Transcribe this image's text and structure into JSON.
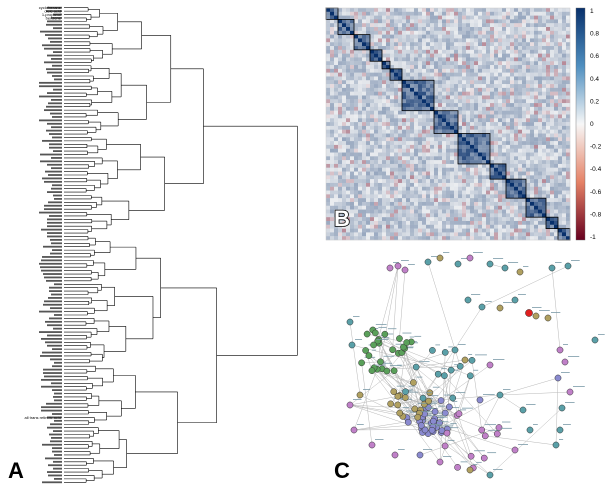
{
  "panels": {
    "a": {
      "letter": "A"
    },
    "b": {
      "letter": "B"
    },
    "c": {
      "letter": "C"
    }
  },
  "chart_data": [
    {
      "type": "dendrogram",
      "panel": "A",
      "leaf_count": 140,
      "top_labels": [
        "cyclohexane",
        "oleic acid",
        "1-propanol",
        "benzene"
      ],
      "other_labels": [
        "all trans retinoic acid"
      ]
    },
    {
      "type": "heatmap",
      "panel": "B",
      "colorbar": {
        "ticks": [
          "1",
          "0.8",
          "0.6",
          "0.4",
          "0.2",
          "0",
          "-0.2",
          "-0.4",
          "-0.6",
          "-0.8",
          "-1"
        ],
        "colors": {
          "high": "#08306b",
          "mid": "#f7f7f7",
          "low": "#67001f"
        }
      },
      "grid": "off"
    },
    {
      "type": "network",
      "panel": "C",
      "node_colors": [
        "#5aa05a",
        "#8a8ad0",
        "#b0a060",
        "#5aa0a8",
        "#c080c8",
        "#e02020"
      ]
    }
  ]
}
